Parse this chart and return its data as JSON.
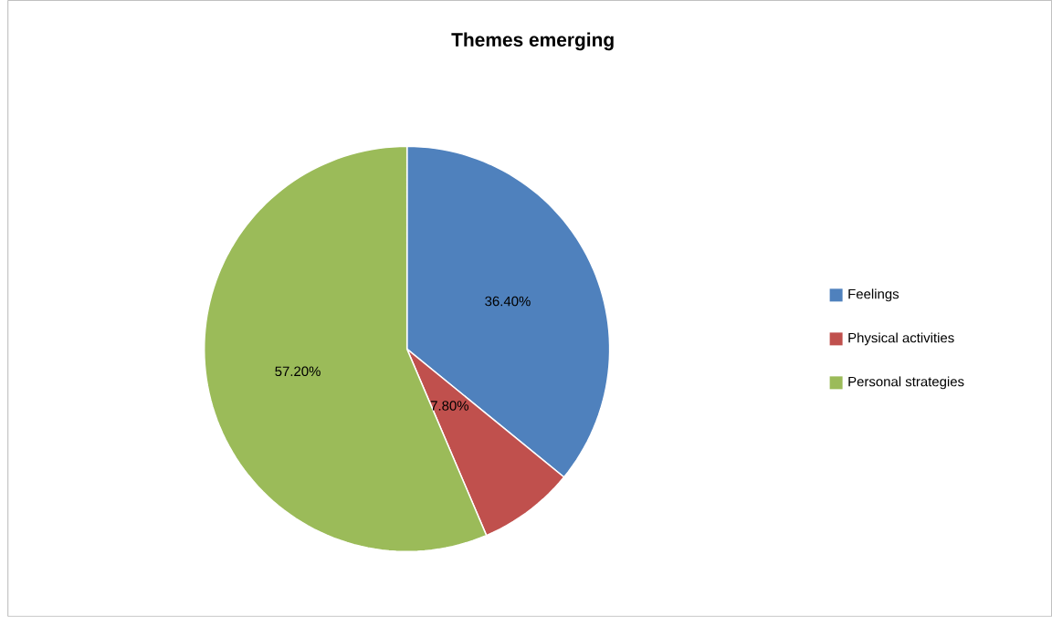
{
  "chart_data": {
    "type": "pie",
    "title": "Themes emerging",
    "categories": [
      "Feelings",
      "Physical activities",
      "Personal strategies"
    ],
    "values": [
      36.4,
      7.8,
      57.2
    ],
    "value_labels": [
      "36.40%",
      "7.80%",
      "57.20%"
    ],
    "colors": [
      "#4f81bd",
      "#c0504d",
      "#9bbb59"
    ],
    "legend": "right"
  }
}
